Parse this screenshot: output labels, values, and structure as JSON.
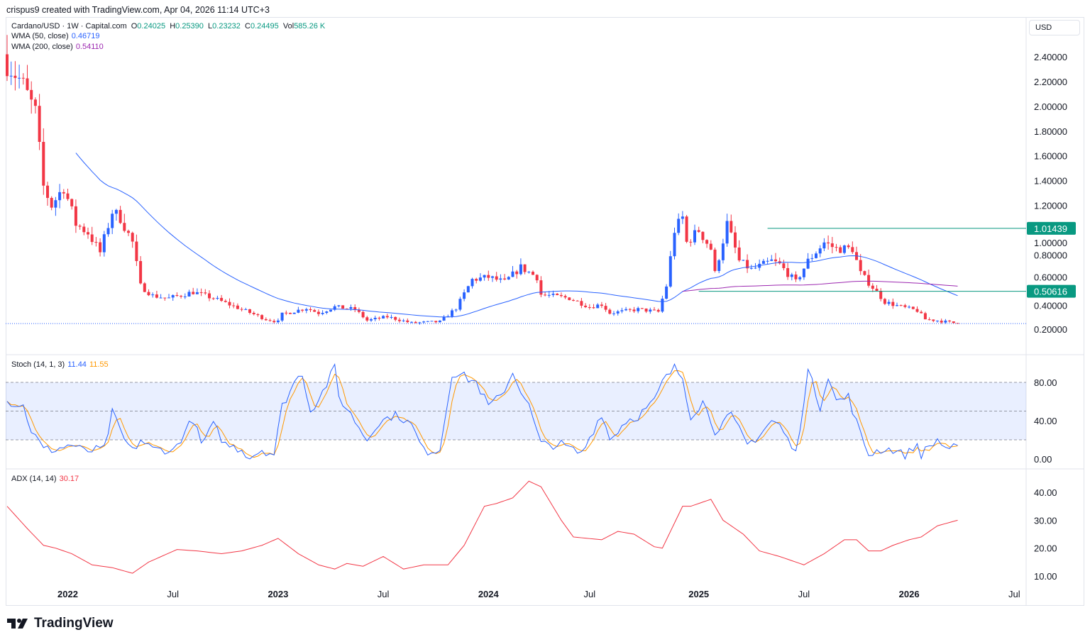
{
  "header": {
    "attribution": "crispus9 created with TradingView.com, Apr 04, 2026 11:14 UTC+3"
  },
  "legend": {
    "symbol": "Cardano/USD · 1W · Capital.com",
    "o_label": "O",
    "o": "0.24025",
    "h_label": "H",
    "h": "0.25390",
    "l_label": "L",
    "l": "0.23232",
    "c_label": "C",
    "c": "0.24495",
    "vol_label": "Vol",
    "vol": "585.26 K",
    "wma50_label": "WMA (50, close)",
    "wma50": "0.46719",
    "wma200_label": "WMA (200, close)",
    "wma200": "0.54110",
    "stoch_label": "Stoch (14, 1, 3)",
    "stoch_k": "11.44",
    "stoch_d": "11.55",
    "adx_label": "ADX (14, 14)",
    "adx": "30.17"
  },
  "currency": "USD",
  "brand": "TradingView",
  "colors": {
    "up": "#2962ff",
    "down": "#f23645",
    "wma50": "#2962ff",
    "wma200": "#9c27b0",
    "stoch_k": "#2962ff",
    "stoch_d": "#ff9800",
    "adx": "#f23645",
    "level": "#089981"
  },
  "chart_data": [
    {
      "type": "candlestick",
      "title": "Cardano/USD 1W",
      "x_unit": "weeks since Sep 2021",
      "ylim": [
        0.2,
        2.4
      ],
      "yticks": [
        "2.40000",
        "2.20000",
        "2.00000",
        "1.80000",
        "1.60000",
        "1.40000",
        "1.20000",
        "1.00000",
        "0.80000",
        "0.60000",
        "0.40000",
        "0.20000"
      ],
      "ytick_values": [
        2.4,
        2.2,
        2.0,
        1.8,
        1.6,
        1.4,
        1.2,
        1.0,
        0.8,
        0.6,
        0.4,
        0.2
      ],
      "close_path": [
        [
          0,
          2.35
        ],
        [
          3.5,
          2.2
        ],
        [
          7,
          1.95
        ],
        [
          9,
          1.35
        ],
        [
          11,
          1.2
        ],
        [
          14,
          1.35
        ],
        [
          17,
          1.05
        ],
        [
          20,
          0.98
        ],
        [
          23,
          0.82
        ],
        [
          26,
          1.15
        ],
        [
          28,
          1.1
        ],
        [
          31,
          0.9
        ],
        [
          33,
          0.55
        ],
        [
          36,
          0.47
        ],
        [
          40,
          0.45
        ],
        [
          46,
          0.5
        ],
        [
          51,
          0.45
        ],
        [
          58,
          0.36
        ],
        [
          64,
          0.28
        ],
        [
          67,
          0.26
        ],
        [
          68,
          0.32
        ],
        [
          74,
          0.37
        ],
        [
          77,
          0.33
        ],
        [
          81,
          0.38
        ],
        [
          86,
          0.36
        ],
        [
          89,
          0.27
        ],
        [
          94,
          0.3
        ],
        [
          100,
          0.25
        ],
        [
          107,
          0.26
        ],
        [
          111,
          0.37
        ],
        [
          115,
          0.6
        ],
        [
          119,
          0.62
        ],
        [
          123,
          0.58
        ],
        [
          127,
          0.7
        ],
        [
          131,
          0.62
        ],
        [
          132,
          0.48
        ],
        [
          139,
          0.45
        ],
        [
          144,
          0.38
        ],
        [
          147,
          0.4
        ],
        [
          149,
          0.33
        ],
        [
          156,
          0.36
        ],
        [
          161,
          0.34
        ],
        [
          163,
          0.55
        ],
        [
          165,
          1.0
        ],
        [
          167,
          1.1
        ],
        [
          168,
          0.9
        ],
        [
          171,
          1.0
        ],
        [
          174,
          0.85
        ],
        [
          175,
          0.65
        ],
        [
          178,
          1.05
        ],
        [
          181,
          0.75
        ],
        [
          184,
          0.68
        ],
        [
          189,
          0.75
        ],
        [
          191,
          0.72
        ],
        [
          195,
          0.58
        ],
        [
          198,
          0.75
        ],
        [
          202,
          0.9
        ],
        [
          205,
          0.85
        ],
        [
          209,
          0.85
        ],
        [
          211,
          0.65
        ],
        [
          215,
          0.5
        ],
        [
          217,
          0.42
        ],
        [
          221,
          0.38
        ],
        [
          225,
          0.35
        ],
        [
          227,
          0.28
        ],
        [
          230,
          0.27
        ],
        [
          235,
          0.245
        ]
      ],
      "levels": [
        {
          "value": 1.01439,
          "label": "1.01439",
          "from_week": 188
        },
        {
          "value": 0.50616,
          "label": "0.50616",
          "from_week": 171
        }
      ],
      "last_price": 0.24495
    },
    {
      "type": "line",
      "title": "Stoch (14, 1, 3)",
      "ylim": [
        0,
        100
      ],
      "band": [
        20,
        80
      ],
      "yticks": [
        "80.00",
        "40.00",
        "0.00"
      ],
      "ytick_values": [
        80,
        40,
        0
      ],
      "k_path": [
        [
          0,
          60
        ],
        [
          4,
          55
        ],
        [
          6,
          30
        ],
        [
          9,
          10
        ],
        [
          12,
          10
        ],
        [
          16,
          15
        ],
        [
          19,
          8
        ],
        [
          24,
          10
        ],
        [
          26,
          48
        ],
        [
          29,
          20
        ],
        [
          31,
          8
        ],
        [
          33,
          20
        ],
        [
          36,
          10
        ],
        [
          39,
          10
        ],
        [
          41,
          8
        ],
        [
          46,
          42
        ],
        [
          48,
          15
        ],
        [
          51,
          35
        ],
        [
          54,
          15
        ],
        [
          58,
          10
        ],
        [
          60,
          2
        ],
        [
          63,
          10
        ],
        [
          66,
          5
        ],
        [
          68,
          55
        ],
        [
          71,
          80
        ],
        [
          73,
          90
        ],
        [
          75,
          50
        ],
        [
          78,
          70
        ],
        [
          81,
          95
        ],
        [
          82,
          65
        ],
        [
          86,
          40
        ],
        [
          89,
          20
        ],
        [
          91,
          35
        ],
        [
          95,
          45
        ],
        [
          97,
          45
        ],
        [
          100,
          35
        ],
        [
          103,
          8
        ],
        [
          107,
          10
        ],
        [
          110,
          90
        ],
        [
          112,
          88
        ],
        [
          116,
          80
        ],
        [
          119,
          55
        ],
        [
          122,
          65
        ],
        [
          125,
          90
        ],
        [
          129,
          55
        ],
        [
          132,
          15
        ],
        [
          137,
          15
        ],
        [
          142,
          5
        ],
        [
          147,
          48
        ],
        [
          149,
          20
        ],
        [
          153,
          40
        ],
        [
          156,
          45
        ],
        [
          160,
          60
        ],
        [
          162,
          80
        ],
        [
          165,
          95
        ],
        [
          167,
          85
        ],
        [
          169,
          45
        ],
        [
          172,
          60
        ],
        [
          175,
          30
        ],
        [
          179,
          45
        ],
        [
          183,
          15
        ],
        [
          186,
          25
        ],
        [
          189,
          40
        ],
        [
          191,
          35
        ],
        [
          195,
          5
        ],
        [
          198,
          92
        ],
        [
          201,
          55
        ],
        [
          203,
          88
        ],
        [
          205,
          60
        ],
        [
          208,
          65
        ],
        [
          211,
          25
        ],
        [
          213,
          5
        ],
        [
          216,
          10
        ],
        [
          219,
          10
        ],
        [
          222,
          3
        ],
        [
          225,
          15
        ],
        [
          226,
          5
        ],
        [
          230,
          20
        ],
        [
          232,
          12
        ],
        [
          235,
          11
        ]
      ]
    },
    {
      "type": "line",
      "title": "ADX (14, 14)",
      "ylim": [
        10,
        40
      ],
      "yticks": [
        "40.00",
        "30.00",
        "20.00",
        "10.00"
      ],
      "ytick_values": [
        40,
        30,
        20,
        10
      ],
      "path": [
        [
          0,
          35
        ],
        [
          5,
          27
        ],
        [
          9,
          21
        ],
        [
          12,
          20
        ],
        [
          16,
          18
        ],
        [
          21,
          14
        ],
        [
          26,
          13
        ],
        [
          31,
          11
        ],
        [
          35,
          15
        ],
        [
          42,
          19.5
        ],
        [
          47,
          19
        ],
        [
          53,
          18
        ],
        [
          58,
          19
        ],
        [
          63,
          21
        ],
        [
          67,
          23.5
        ],
        [
          72,
          18
        ],
        [
          77,
          14
        ],
        [
          81,
          12.5
        ],
        [
          84,
          14.5
        ],
        [
          88,
          13.5
        ],
        [
          93,
          17
        ],
        [
          98,
          12.5
        ],
        [
          103,
          14
        ],
        [
          109,
          14
        ],
        [
          113,
          21
        ],
        [
          118,
          35
        ],
        [
          121,
          36
        ],
        [
          125,
          38
        ],
        [
          129,
          44
        ],
        [
          132,
          42
        ],
        [
          137,
          30
        ],
        [
          140,
          24
        ],
        [
          147,
          23
        ],
        [
          151,
          26
        ],
        [
          155,
          25
        ],
        [
          160,
          20.5
        ],
        [
          162,
          20
        ],
        [
          167,
          35
        ],
        [
          169,
          35
        ],
        [
          174,
          37.5
        ],
        [
          177,
          30
        ],
        [
          182,
          25
        ],
        [
          186,
          19
        ],
        [
          191,
          17
        ],
        [
          197,
          14
        ],
        [
          202,
          18
        ],
        [
          207,
          23
        ],
        [
          210,
          23
        ],
        [
          213,
          19
        ],
        [
          216,
          19
        ],
        [
          219,
          21
        ],
        [
          223,
          23
        ],
        [
          226,
          24
        ],
        [
          230,
          28
        ],
        [
          235,
          30
        ]
      ]
    }
  ],
  "time_axis": [
    {
      "label": "2022",
      "week": 15,
      "bold": true
    },
    {
      "label": "Jul",
      "week": 41
    },
    {
      "label": "2023",
      "week": 67,
      "bold": true
    },
    {
      "label": "Jul",
      "week": 93
    },
    {
      "label": "2024",
      "week": 119,
      "bold": true
    },
    {
      "label": "Jul",
      "week": 144
    },
    {
      "label": "2025",
      "week": 171,
      "bold": true
    },
    {
      "label": "Jul",
      "week": 197
    },
    {
      "label": "2026",
      "week": 223,
      "bold": true
    },
    {
      "label": "Jul",
      "week": 249
    }
  ]
}
